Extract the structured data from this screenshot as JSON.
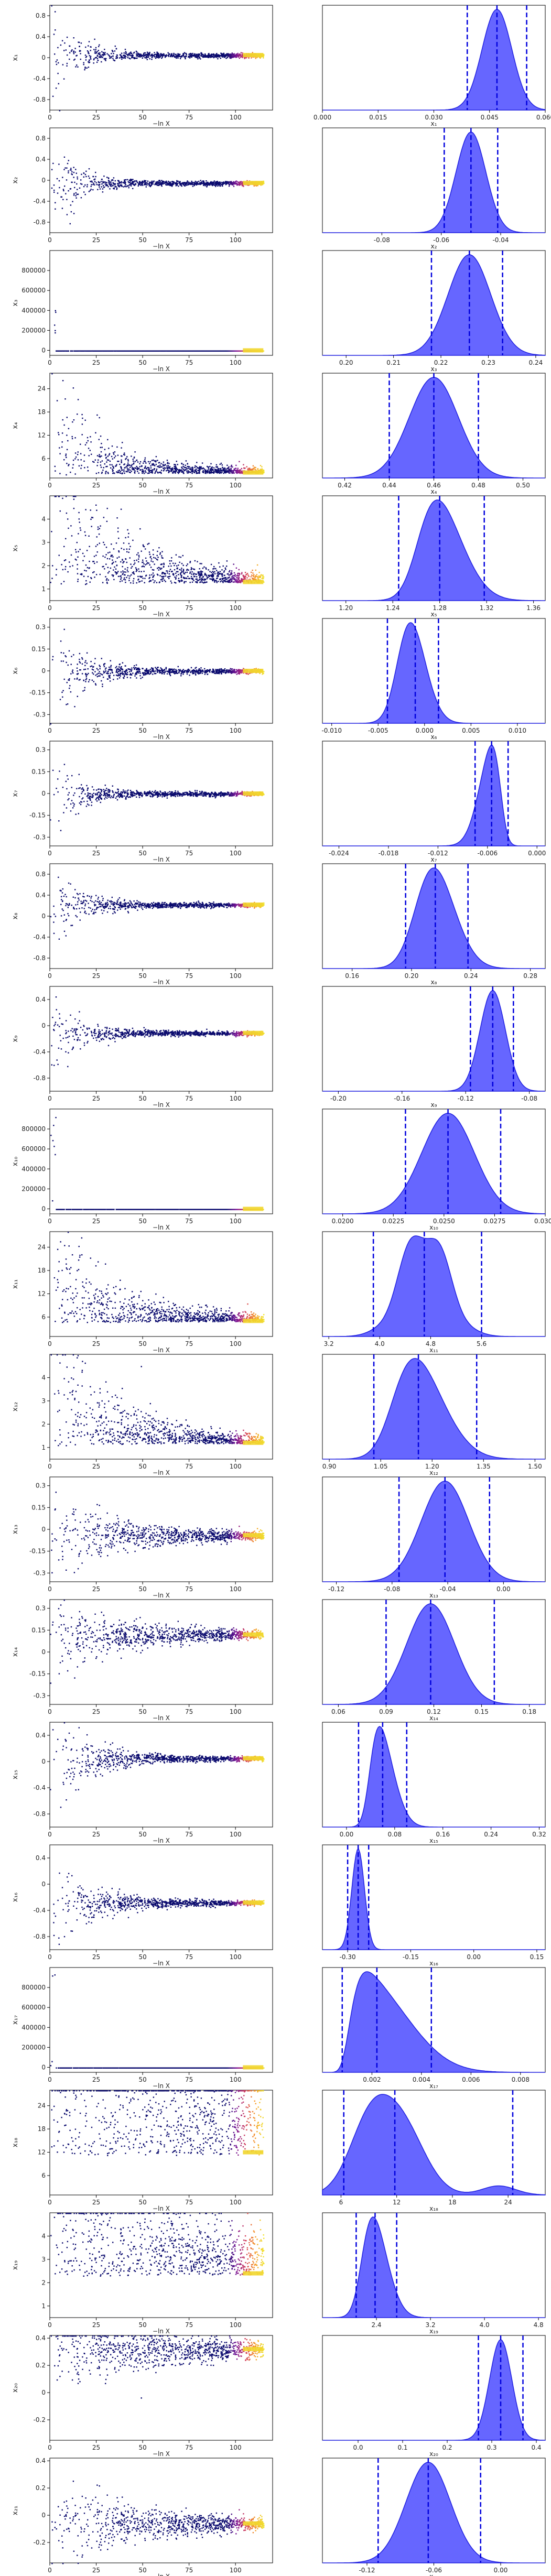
{
  "figure": {
    "xlabel_left": "−ln X"
  },
  "chart_data": [
    {
      "type": "scatter",
      "name": "x1",
      "label": "x₁",
      "trace_yticks": [
        -0.8,
        -0.4,
        0.0,
        0.4,
        0.8
      ],
      "trace_ylim": [
        -1,
        1
      ],
      "trace_final": 0.05,
      "trace_spread0": 0.9,
      "trace_decay": 14,
      "post_xticks": [
        "0.000",
        "0.015",
        "0.030",
        "0.045",
        "0.060"
      ],
      "post_xlim": [
        0,
        0.06
      ],
      "post_mode": 0.047,
      "post_sd": 0.004,
      "post_skew": 0,
      "post_lines": [
        0.039,
        0.047,
        0.055
      ]
    },
    {
      "type": "scatter",
      "name": "x2",
      "label": "x₂",
      "trace_yticks": [
        -0.8,
        -0.4,
        0.0,
        0.4,
        0.8
      ],
      "trace_ylim": [
        -1,
        1
      ],
      "trace_final": -0.05,
      "trace_spread0": 0.9,
      "trace_decay": 14,
      "post_xticks": [
        "-0.08",
        "-0.06",
        "-0.04"
      ],
      "post_xlim": [
        -0.1,
        -0.025
      ],
      "post_mode": -0.05,
      "post_sd": 0.005,
      "post_skew": 0,
      "post_lines": [
        -0.059,
        -0.05,
        -0.041
      ]
    },
    {
      "type": "scatter",
      "name": "x3",
      "label": "x₃",
      "trace_yticks": [
        0,
        200000,
        400000,
        600000,
        800000
      ],
      "trace_ylim": [
        -50000,
        1000000
      ],
      "trace_final": 0.2,
      "trace_spread0": 0,
      "trace_decay": 3,
      "trace_spike": true,
      "post_xticks": [
        "0.20",
        "0.21",
        "0.22",
        "0.23",
        "0.24"
      ],
      "post_xlim": [
        0.195,
        0.242
      ],
      "post_mode": 0.226,
      "post_sd": 0.0045,
      "post_skew": 0,
      "post_lines": [
        0.218,
        0.226,
        0.233
      ]
    },
    {
      "type": "scatter",
      "name": "x4",
      "label": "x₄",
      "trace_yticks": [
        6,
        12,
        18,
        24
      ],
      "trace_ylim": [
        1,
        28
      ],
      "trace_final": 2.4,
      "trace_spread0": 12,
      "trace_decay": 22,
      "trace_lower": true,
      "post_xticks": [
        "0.42",
        "0.44",
        "0.46",
        "0.48",
        "0.50"
      ],
      "post_xlim": [
        0.41,
        0.51
      ],
      "post_mode": 0.46,
      "post_sd": 0.011,
      "post_skew": 0,
      "post_lines": [
        0.44,
        0.46,
        0.48
      ]
    },
    {
      "type": "scatter",
      "name": "x5",
      "label": "x₅",
      "trace_yticks": [
        1,
        2,
        3,
        4
      ],
      "trace_ylim": [
        0.5,
        5
      ],
      "trace_final": 1.3,
      "trace_spread0": 2.5,
      "trace_decay": 35,
      "trace_lower": true,
      "post_xticks": [
        "1.20",
        "1.24",
        "1.28",
        "1.32",
        "1.36"
      ],
      "post_xlim": [
        1.18,
        1.37
      ],
      "post_mode": 1.278,
      "post_sd": 0.018,
      "post_skew": 0.2,
      "post_lines": [
        1.245,
        1.28,
        1.318
      ]
    },
    {
      "type": "scatter",
      "name": "x6",
      "label": "x₆",
      "trace_yticks": [
        -0.3,
        -0.15,
        0.0,
        0.15,
        0.3
      ],
      "trace_ylim": [
        -0.36,
        0.36
      ],
      "trace_final": 0.0,
      "trace_spread0": 0.3,
      "trace_decay": 18,
      "post_xticks": [
        "-0.010",
        "-0.005",
        "0.000",
        "0.005",
        "0.010"
      ],
      "post_xlim": [
        -0.011,
        0.013
      ],
      "post_mode": -0.0015,
      "post_sd": 0.0015,
      "post_skew": 0.1,
      "post_lines": [
        -0.004,
        -0.001,
        0.0015
      ]
    },
    {
      "type": "scatter",
      "name": "x7",
      "label": "x₇",
      "trace_yticks": [
        -0.3,
        -0.15,
        0.0,
        0.15,
        0.3
      ],
      "trace_ylim": [
        -0.36,
        0.36
      ],
      "trace_final": 0.0,
      "trace_spread0": 0.3,
      "trace_decay": 14,
      "post_xticks": [
        "-0.024",
        "-0.018",
        "-0.012",
        "-0.006",
        "0.000"
      ],
      "post_xlim": [
        -0.026,
        0.001
      ],
      "post_mode": -0.0055,
      "post_sd": 0.0012,
      "post_skew": -0.3,
      "post_lines": [
        -0.0075,
        -0.0055,
        -0.0035
      ]
    },
    {
      "type": "scatter",
      "name": "x8",
      "label": "x₈",
      "trace_yticks": [
        -0.8,
        -0.4,
        0.0,
        0.4,
        0.8
      ],
      "trace_ylim": [
        -1,
        1
      ],
      "trace_final": 0.22,
      "trace_spread0": 0.9,
      "trace_decay": 14,
      "post_xticks": [
        "0.16",
        "0.20",
        "0.24",
        "0.28"
      ],
      "post_xlim": [
        0.14,
        0.29
      ],
      "post_mode": 0.215,
      "post_sd": 0.013,
      "post_skew": 0.1,
      "post_lines": [
        0.196,
        0.216,
        0.238
      ]
    },
    {
      "type": "scatter",
      "name": "x9",
      "label": "x₉",
      "trace_yticks": [
        -0.8,
        -0.4,
        0.0,
        0.4
      ],
      "trace_ylim": [
        -1,
        0.6
      ],
      "trace_final": -0.11,
      "trace_spread0": 0.8,
      "trace_decay": 14,
      "post_xticks": [
        "-0.20",
        "-0.16",
        "-0.12",
        "-0.08"
      ],
      "post_xlim": [
        -0.21,
        -0.07
      ],
      "post_mode": -0.103,
      "post_sd": 0.008,
      "post_skew": 0,
      "post_lines": [
        -0.117,
        -0.103,
        -0.09
      ]
    },
    {
      "type": "scatter",
      "name": "x10",
      "label": "x₁₀",
      "trace_yticks": [
        0,
        200000,
        400000,
        600000,
        800000
      ],
      "trace_ylim": [
        -50000,
        1000000
      ],
      "trace_final": 0.025,
      "trace_spread0": 0,
      "trace_decay": 3,
      "trace_spike": true,
      "post_xticks": [
        "0.0200",
        "0.0225",
        "0.0250",
        "0.0275",
        "0.0300"
      ],
      "post_xlim": [
        0.019,
        0.03
      ],
      "post_mode": 0.0252,
      "post_sd": 0.0013,
      "post_skew": 0,
      "post_lines": [
        0.0231,
        0.0252,
        0.0278
      ]
    },
    {
      "type": "scatter",
      "name": "x11",
      "label": "x₁₁",
      "trace_yticks": [
        6,
        12,
        18,
        24
      ],
      "trace_ylim": [
        1,
        28
      ],
      "trace_final": 5,
      "trace_spread0": 12,
      "trace_decay": 30,
      "trace_lower": true,
      "post_xticks": [
        "3.2",
        "4.0",
        "4.8",
        "5.6"
      ],
      "post_xlim": [
        3.1,
        6.6
      ],
      "post_mode": 4.7,
      "post_sd": 0.35,
      "post_skew": 0,
      "post_lines": [
        3.9,
        4.7,
        5.6
      ]
    },
    {
      "type": "scatter",
      "name": "x12",
      "label": "x₁₂",
      "trace_yticks": [
        1,
        2,
        3,
        4
      ],
      "trace_ylim": [
        0.5,
        5
      ],
      "trace_final": 1.2,
      "trace_spread0": 2.5,
      "trace_decay": 30,
      "trace_lower": true,
      "post_xticks": [
        "0.90",
        "1.05",
        "1.20",
        "1.35",
        "1.50"
      ],
      "post_xlim": [
        0.88,
        1.53
      ],
      "post_mode": 1.15,
      "post_sd": 0.07,
      "post_skew": 0.2,
      "post_lines": [
        1.03,
        1.16,
        1.33
      ]
    },
    {
      "type": "scatter",
      "name": "x13",
      "label": "x₁₃",
      "trace_yticks": [
        -0.3,
        -0.15,
        0.0,
        0.15,
        0.3
      ],
      "trace_ylim": [
        -0.36,
        0.36
      ],
      "trace_final": -0.04,
      "trace_spread0": 0.25,
      "trace_decay": 40,
      "post_xticks": [
        "-0.12",
        "-0.08",
        "-0.04",
        "0.00"
      ],
      "post_xlim": [
        -0.13,
        0.03
      ],
      "post_mode": -0.042,
      "post_sd": 0.017,
      "post_skew": 0,
      "post_lines": [
        -0.075,
        -0.042,
        -0.01
      ]
    },
    {
      "type": "scatter",
      "name": "x14",
      "label": "x₁₄",
      "trace_yticks": [
        -0.3,
        -0.15,
        0.0,
        0.15,
        0.3
      ],
      "trace_ylim": [
        -0.36,
        0.36
      ],
      "trace_final": 0.12,
      "trace_spread0": 0.25,
      "trace_decay": 40,
      "post_xticks": [
        "0.06",
        "0.09",
        "0.12",
        "0.15",
        "0.18"
      ],
      "post_xlim": [
        0.05,
        0.19
      ],
      "post_mode": 0.118,
      "post_sd": 0.015,
      "post_skew": 0,
      "post_lines": [
        0.09,
        0.118,
        0.158
      ]
    },
    {
      "type": "scatter",
      "name": "x15",
      "label": "x₁₅",
      "trace_yticks": [
        -0.8,
        -0.4,
        0.0,
        0.4
      ],
      "trace_ylim": [
        -1,
        0.6
      ],
      "trace_final": 0.05,
      "trace_spread0": 0.8,
      "trace_decay": 20,
      "post_xticks": [
        "0.00",
        "0.08",
        "0.16",
        "0.24",
        "0.32"
      ],
      "post_xlim": [
        -0.04,
        0.33
      ],
      "post_mode": 0.055,
      "post_sd": 0.018,
      "post_skew": 0.3,
      "post_lines": [
        0.02,
        0.06,
        0.1
      ]
    },
    {
      "type": "scatter",
      "name": "x16",
      "label": "x₁₆",
      "trace_yticks": [
        -0.8,
        -0.4,
        0.0,
        0.4
      ],
      "trace_ylim": [
        -1,
        0.6
      ],
      "trace_final": -0.28,
      "trace_spread0": 0.8,
      "trace_decay": 20,
      "post_xticks": [
        "-0.30",
        "-0.15",
        "0.00",
        "0.15"
      ],
      "post_xlim": [
        -0.36,
        0.17
      ],
      "post_mode": -0.275,
      "post_sd": 0.015,
      "post_skew": 0,
      "post_lines": [
        -0.3,
        -0.275,
        -0.25
      ]
    },
    {
      "type": "scatter",
      "name": "x17",
      "label": "x₁₇",
      "trace_yticks": [
        0,
        200000,
        400000,
        600000,
        800000
      ],
      "trace_ylim": [
        -50000,
        1000000
      ],
      "trace_final": 0.002,
      "trace_spread0": 0,
      "trace_decay": 3,
      "trace_spike": true,
      "post_xticks": [
        "0.002",
        "0.004",
        "0.006",
        "0.008"
      ],
      "post_xlim": [
        0.0,
        0.009
      ],
      "post_mode": 0.0018,
      "post_sd": 0.0009,
      "post_skew": 0.8,
      "post_lines": [
        0.0008,
        0.0022,
        0.0044
      ]
    },
    {
      "type": "scatter",
      "name": "x18",
      "label": "x₁₈",
      "trace_yticks": [
        6,
        12,
        18,
        24
      ],
      "trace_ylim": [
        1,
        28
      ],
      "trace_final": 12,
      "trace_spread0": 12,
      "trace_decay": 200,
      "trace_lower": true,
      "post_xticks": [
        "6",
        "12",
        "18",
        "24"
      ],
      "post_xlim": [
        4,
        28
      ],
      "post_mode": 10.5,
      "post_sd": 3.2,
      "post_skew": 0.6,
      "post_lines": [
        6.3,
        11.8,
        24.5
      ]
    },
    {
      "type": "scatter",
      "name": "x19",
      "label": "x₁₉",
      "trace_yticks": [
        1,
        2,
        3,
        4
      ],
      "trace_ylim": [
        0.5,
        5
      ],
      "trace_final": 2.4,
      "trace_spread0": 2.5,
      "trace_decay": 80,
      "trace_lower": true,
      "post_xticks": [
        "2.4",
        "3.2",
        "4.0",
        "4.8"
      ],
      "post_xlim": [
        1.6,
        4.9
      ],
      "post_mode": 2.35,
      "post_sd": 0.18,
      "post_skew": 0.2,
      "post_lines": [
        2.1,
        2.38,
        2.7
      ]
    },
    {
      "type": "scatter",
      "name": "x20",
      "label": "x₂₀",
      "trace_yticks": [
        -0.2,
        0.0,
        0.2,
        0.4
      ],
      "trace_ylim": [
        -0.35,
        0.42
      ],
      "trace_final": 0.32,
      "trace_spread0": 0.3,
      "trace_decay": 60,
      "post_xticks": [
        "0.0",
        "0.1",
        "0.2",
        "0.3",
        "0.4"
      ],
      "post_xlim": [
        -0.08,
        0.42
      ],
      "post_mode": 0.32,
      "post_sd": 0.025,
      "post_skew": 0,
      "post_lines": [
        0.27,
        0.32,
        0.37
      ]
    },
    {
      "type": "scatter",
      "name": "x21",
      "label": "x₂₁",
      "trace_yticks": [
        -0.2,
        0.0,
        0.2,
        0.4
      ],
      "trace_ylim": [
        -0.35,
        0.42
      ],
      "trace_final": -0.06,
      "trace_spread0": 0.3,
      "trace_decay": 50,
      "post_xticks": [
        "-0.12",
        "-0.06",
        "0.00"
      ],
      "post_xlim": [
        -0.16,
        0.04
      ],
      "post_mode": -0.065,
      "post_sd": 0.02,
      "post_skew": 0,
      "post_lines": [
        -0.11,
        -0.065,
        -0.018
      ]
    }
  ],
  "trace_xticks": [
    "0",
    "25",
    "50",
    "75",
    "100"
  ],
  "trace_xlim": [
    0,
    120
  ],
  "colors": {
    "kde_fill": "#5555ff",
    "kde_edge": "#2020e0",
    "quantile_line": "#0000dd",
    "trace_base": "#0b0b6e",
    "trace_hot": "#f0e030"
  }
}
